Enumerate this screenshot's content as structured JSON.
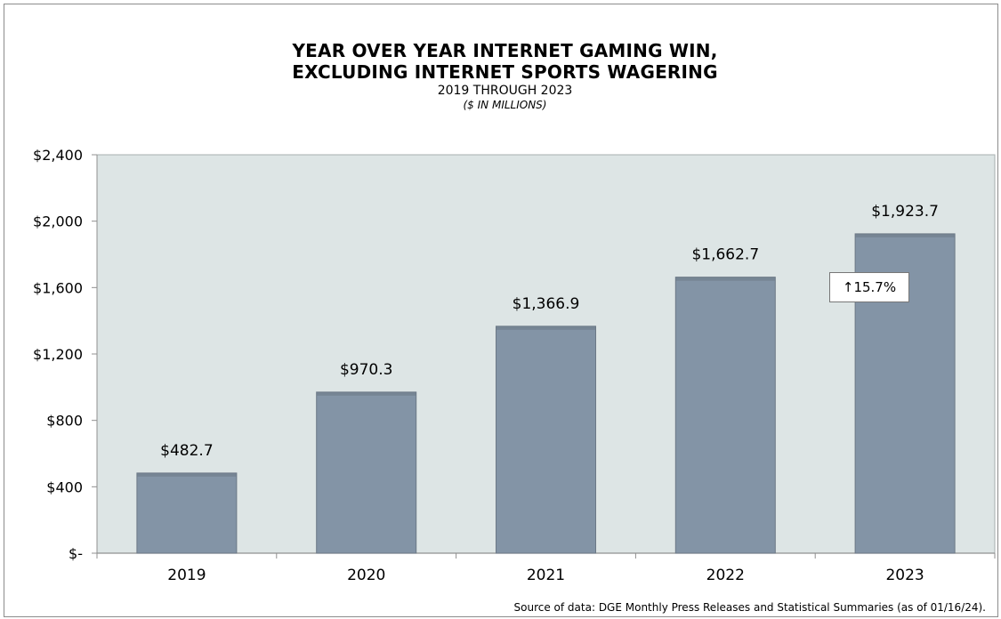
{
  "chart_data": {
    "type": "bar",
    "title_line1": "YEAR OVER YEAR INTERNET GAMING WIN,",
    "title_line2": "EXCLUDING INTERNET SPORTS WAGERING",
    "subtitle": "2019 THROUGH 2023",
    "units_note": "($ IN MILLIONS)",
    "categories": [
      "2019",
      "2020",
      "2021",
      "2022",
      "2023"
    ],
    "values": [
      482.7,
      970.3,
      1366.9,
      1662.7,
      1923.7
    ],
    "value_labels": [
      "$482.7",
      "$970.3",
      "$1,366.9",
      "$1,662.7",
      "$1,923.7"
    ],
    "y_ticks": [
      0,
      400,
      800,
      1200,
      1600,
      2000,
      2400
    ],
    "y_tick_labels": [
      "$-",
      "$400",
      "$800",
      "$1,200",
      "$1,600",
      "$2,000",
      "$2,400"
    ],
    "ylim": [
      0,
      2400
    ],
    "xlabel": "",
    "ylabel": "",
    "grid": false,
    "legend": "none",
    "annotation": "↑15.7%",
    "source_note": "Source of data: DGE Monthly Press Releases and Statistical Summaries (as of 01/16/24).",
    "colors": {
      "plot_background": "#dde5e5",
      "bar": "#8394a6",
      "bar_edge": "#6c7886",
      "axis": "#909090"
    }
  }
}
